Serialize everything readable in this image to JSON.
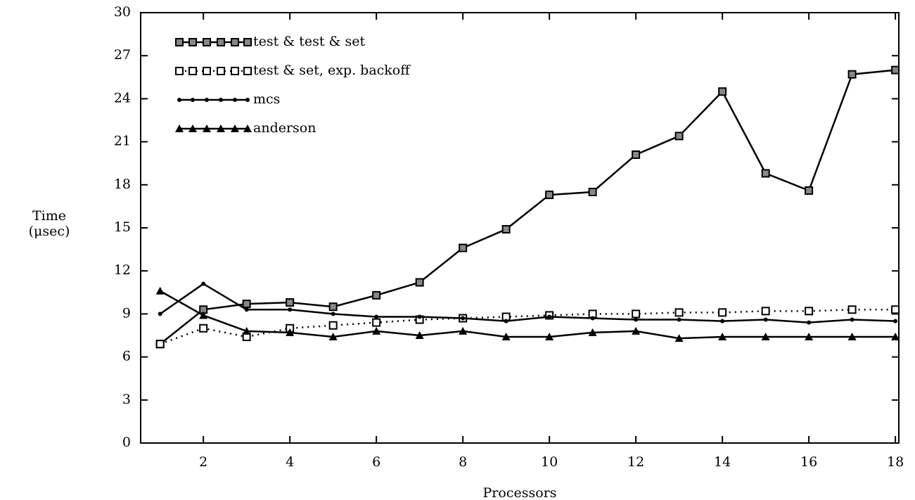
{
  "chart_data": {
    "type": "line",
    "x": [
      1,
      2,
      3,
      4,
      5,
      6,
      7,
      8,
      9,
      10,
      11,
      12,
      13,
      14,
      15,
      16,
      17,
      18
    ],
    "series": [
      {
        "name": "test & test & set",
        "color": "#000000",
        "marker": "square",
        "dash": "solid",
        "values": [
          6.9,
          9.3,
          9.7,
          9.8,
          9.5,
          10.3,
          11.2,
          13.6,
          14.9,
          17.3,
          17.5,
          20.1,
          21.4,
          24.5,
          18.8,
          17.6,
          25.7,
          26.0
        ]
      },
      {
        "name": "test & set, exp. backoff",
        "color": "#000000",
        "marker": "open-square",
        "dash": "dotted",
        "values": [
          6.9,
          8.0,
          7.4,
          8.0,
          8.2,
          8.4,
          8.6,
          8.7,
          8.8,
          8.9,
          9.0,
          9.0,
          9.1,
          9.1,
          9.2,
          9.2,
          9.3,
          9.3
        ]
      },
      {
        "name": "mcs",
        "color": "#000000",
        "marker": "dot",
        "dash": "solid",
        "values": [
          9.0,
          11.1,
          9.3,
          9.3,
          9.0,
          8.8,
          8.8,
          8.7,
          8.5,
          8.8,
          8.7,
          8.6,
          8.6,
          8.5,
          8.6,
          8.4,
          8.6,
          8.5
        ]
      },
      {
        "name": "anderson",
        "color": "#000000",
        "marker": "triangle",
        "dash": "solid",
        "values": [
          10.6,
          8.9,
          7.8,
          7.7,
          7.4,
          7.8,
          7.5,
          7.8,
          7.4,
          7.4,
          7.7,
          7.8,
          7.3,
          7.4,
          7.4,
          7.4,
          7.4,
          7.4
        ]
      }
    ],
    "xlabel": "Processors",
    "ylabel": [
      "Time",
      "(μsec)"
    ],
    "xlim": [
      0.55,
      18.08
    ],
    "ylim": [
      0,
      30
    ],
    "xticks": [
      2,
      4,
      6,
      8,
      10,
      12,
      14,
      16,
      18
    ],
    "yticks": [
      0,
      3,
      6,
      9,
      12,
      15,
      18,
      21,
      24,
      27,
      30
    ],
    "legend": "upper-left"
  }
}
